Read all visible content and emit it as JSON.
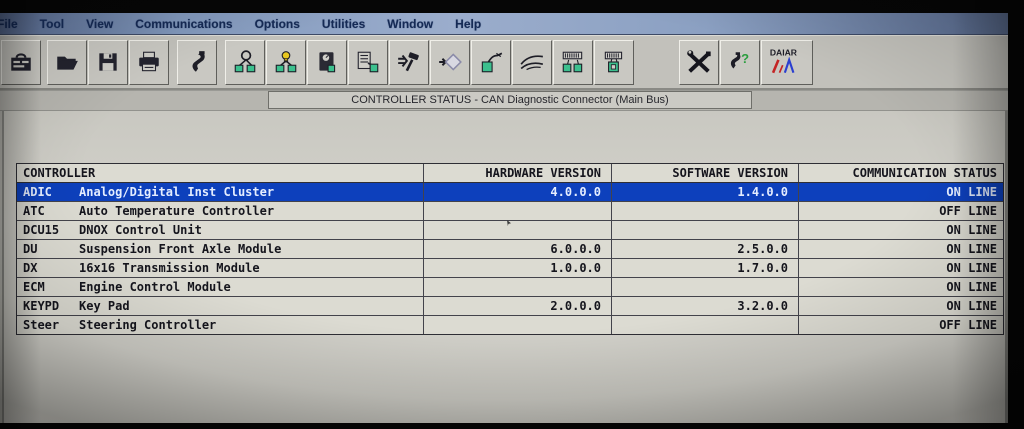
{
  "menu_bar": {
    "items": [
      "File",
      "Tool",
      "View",
      "Communications",
      "Options",
      "Utilities",
      "Window",
      "Help"
    ]
  },
  "toolbar": {
    "daiar_label": "DAIAR",
    "help_glyph": "?",
    "icons": [
      "est-toolbox",
      "open-file",
      "save-floppy",
      "print",
      "connector-probe",
      "network-detect",
      "network-inspect",
      "module-meter",
      "report-module",
      "build-hammer",
      "diamond-flow",
      "module-cable",
      "wire-harness",
      "modules-program",
      "module-program",
      "tools",
      "connector-help",
      "daiar-logo"
    ]
  },
  "title_bar": {
    "title": "CONTROLLER STATUS  -  CAN Diagnostic Connector (Main Bus)"
  },
  "table": {
    "columns": [
      "CONTROLLER",
      "HARDWARE VERSION",
      "SOFTWARE VERSION",
      "COMMUNICATION STATUS"
    ],
    "rows": [
      {
        "id": "ADIC",
        "name": "Analog/Digital Inst Cluster",
        "hw": "4.0.0.0",
        "sw": "1.4.0.0",
        "status": "ON LINE",
        "selected": true
      },
      {
        "id": "ATC",
        "name": "Auto Temperature Controller",
        "hw": "",
        "sw": "",
        "status": "OFF LINE",
        "selected": false
      },
      {
        "id": "DCU15",
        "name": "DNOX Control Unit",
        "hw": "",
        "sw": "",
        "status": "ON LINE",
        "selected": false
      },
      {
        "id": "DU",
        "name": "Suspension Front Axle Module",
        "hw": "6.0.0.0",
        "sw": "2.5.0.0",
        "status": "ON LINE",
        "selected": false
      },
      {
        "id": "DX",
        "name": "16x16 Transmission Module",
        "hw": "1.0.0.0",
        "sw": "1.7.0.0",
        "status": "ON LINE",
        "selected": false
      },
      {
        "id": "ECM",
        "name": "Engine Control Module",
        "hw": "",
        "sw": "",
        "status": "ON LINE",
        "selected": false
      },
      {
        "id": "KEYPD",
        "name": "Key Pad",
        "hw": "2.0.0.0",
        "sw": "3.2.0.0",
        "status": "ON LINE",
        "selected": false
      },
      {
        "id": "Steer",
        "name": "Steering Controller",
        "hw": "",
        "sw": "",
        "status": "OFF LINE",
        "selected": false
      }
    ]
  },
  "colors": {
    "selected_row_bg": "#0d40bc",
    "selected_row_text": "#e4edff",
    "table_text": "#15151d",
    "module_green": "#3cc08e",
    "bulb_yellow": "#e9c81f",
    "logo_red": "#c42424",
    "logo_blue": "#2a3fd0"
  }
}
